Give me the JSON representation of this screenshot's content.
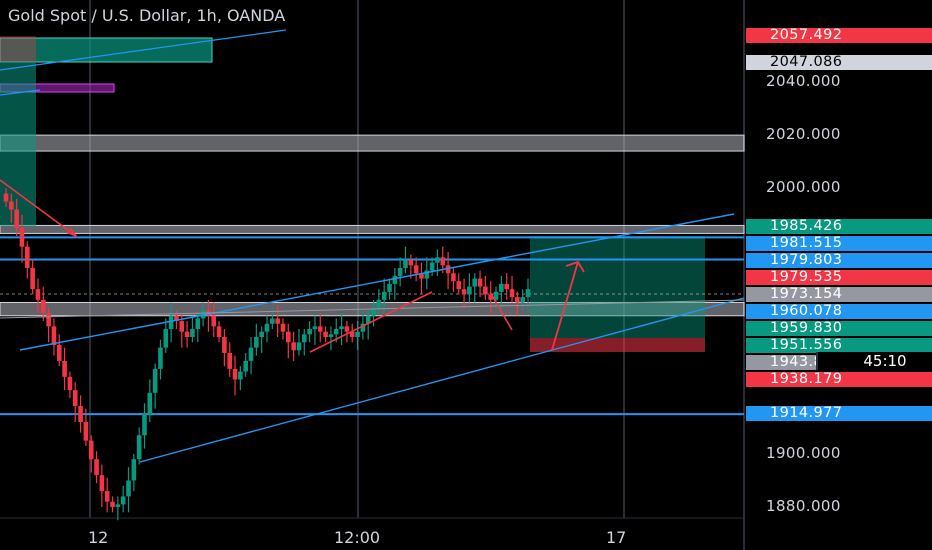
{
  "header": {
    "title": "Gold Spot / U.S. Dollar, 1h, OANDA"
  },
  "chart_data": {
    "type": "candlestick",
    "title": "Gold Spot / U.S. Dollar, 1h, OANDA",
    "ylim": [
      1872,
      2068
    ],
    "y_ticks": [
      {
        "label": "2040.000",
        "value": 2040
      },
      {
        "label": "2020.000",
        "value": 2020
      },
      {
        "label": "2000.000",
        "value": 2000
      },
      {
        "label": "1900.000",
        "value": 1900
      },
      {
        "label": "1880.000",
        "value": 1880
      }
    ],
    "x_ticks": [
      "12",
      "12:00",
      "17"
    ],
    "price_tags": [
      {
        "label": "2057.492",
        "value": 2057.492,
        "color": "#f23645"
      },
      {
        "label": "2047.086",
        "value": 2047.086,
        "color": "#d1d4dc"
      },
      {
        "label": "1985.426",
        "value": 1985.426,
        "color": "#089981"
      },
      {
        "label": "1981.515",
        "value": 1981.515,
        "color": "#2196f3"
      },
      {
        "label": "1979.803",
        "value": 1979.803,
        "color": "#2196f3"
      },
      {
        "label": "1979.535",
        "value": 1979.535,
        "color": "#f23645"
      },
      {
        "label": "1973.154",
        "value": 1973.154,
        "color": "#9598a1"
      },
      {
        "label": "1960.078",
        "value": 1960.078,
        "color": "#2196f3"
      },
      {
        "label": "1959.830",
        "value": 1959.83,
        "color": "#089981"
      },
      {
        "label": "1951.556",
        "value": 1951.556,
        "color": "#089981"
      },
      {
        "label": "1943.869",
        "value": 1943.869,
        "color": "#9598a1"
      },
      {
        "label": "1938.179",
        "value": 1938.179,
        "color": "#f23645"
      },
      {
        "label": "1914.977",
        "value": 1914.977,
        "color": "#2196f3"
      }
    ],
    "countdown": "45:10",
    "horizontal_lines": [
      1981.5,
      1973.2,
      1914.98,
      1960.2
    ],
    "gray_zones": [
      [
        2014,
        2020
      ],
      [
        1983,
        1986
      ],
      [
        1952,
        1957
      ]
    ],
    "candles_close": [
      1995,
      1992,
      1985,
      1978,
      1970,
      1962,
      1958,
      1953,
      1948,
      1941,
      1935,
      1929,
      1924,
      1918,
      1912,
      1905,
      1898,
      1892,
      1886,
      1882,
      1880,
      1881,
      1884,
      1890,
      1898,
      1907,
      1915,
      1923,
      1932,
      1940,
      1947,
      1952,
      1950,
      1946,
      1944,
      1947,
      1951,
      1954,
      1952,
      1948,
      1944,
      1938,
      1932,
      1928,
      1931,
      1935,
      1940,
      1944,
      1946,
      1949,
      1951,
      1949,
      1946,
      1942,
      1939,
      1942,
      1945,
      1947,
      1948,
      1946,
      1944,
      1945,
      1947,
      1948,
      1946,
      1944,
      1946,
      1949,
      1952,
      1955,
      1958,
      1961,
      1964,
      1967,
      1970,
      1973,
      1971,
      1968,
      1966,
      1969,
      1972,
      1974,
      1971,
      1968,
      1965,
      1962,
      1960,
      1963,
      1966,
      1963,
      1960,
      1958,
      1961,
      1964,
      1962,
      1959,
      1957,
      1959,
      1962
    ],
    "colors": {
      "up": "#089981",
      "down": "#f23645",
      "line": "#2196f3"
    }
  }
}
